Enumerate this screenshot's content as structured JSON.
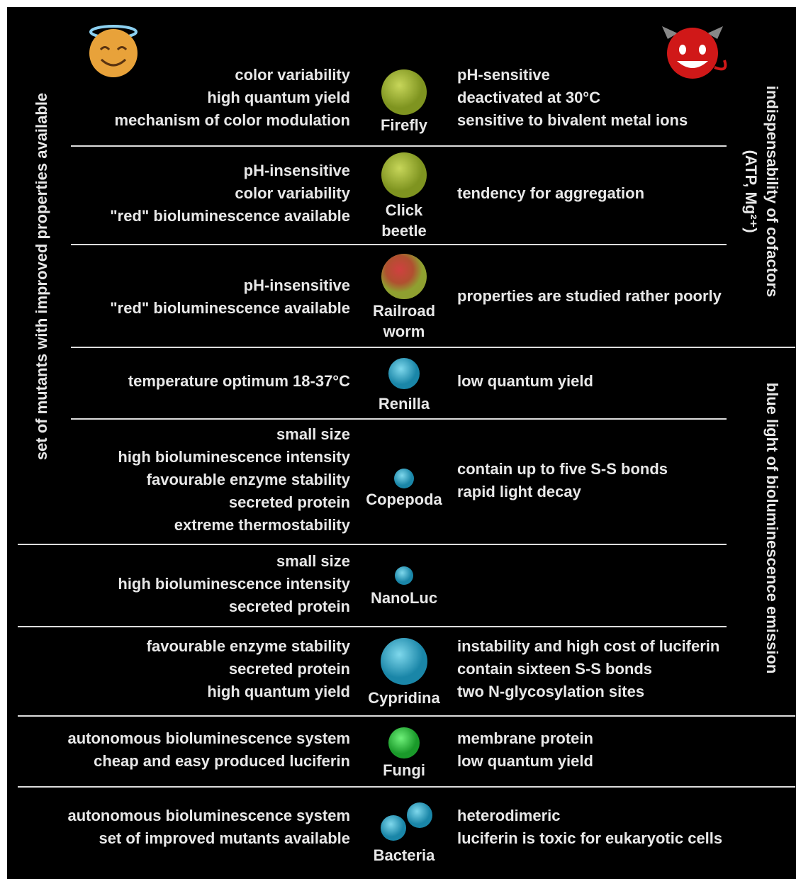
{
  "side_labels": {
    "left": "set of mutants with improved properties available",
    "right_top": "indispensability of cofactors",
    "right_top_sub": "(ATP, Mg²⁺)",
    "right_bottom": "blue light of bioluminescence emission"
  },
  "rows": [
    {
      "name": [
        "Firefly"
      ],
      "pros": [
        "color variability",
        "high quantum yield",
        "mechanism of color modulation"
      ],
      "cons": [
        "pH-sensitive",
        "deactivated at 30°C",
        "sensitive to bivalent metal ions"
      ]
    },
    {
      "name": [
        "Click",
        "beetle"
      ],
      "pros": [
        "pH-insensitive",
        "color variability",
        "\"red\" bioluminescence available"
      ],
      "cons": [
        "tendency for aggregation"
      ]
    },
    {
      "name": [
        "Railroad",
        "worm"
      ],
      "pros": [
        "pH-insensitive",
        "\"red\" bioluminescence available"
      ],
      "cons": [
        "properties are studied rather poorly"
      ]
    },
    {
      "name": [
        "Renilla"
      ],
      "pros": [
        "temperature optimum 18-37°C"
      ],
      "cons": [
        "low quantum yield"
      ]
    },
    {
      "name": [
        "Copepoda"
      ],
      "pros": [
        "small size",
        "high bioluminescence intensity",
        "favourable enzyme stability",
        "secreted protein",
        "extreme thermostability"
      ],
      "cons": [
        "contain up to five S-S bonds",
        "rapid light decay"
      ]
    },
    {
      "name": [
        "NanoLuc"
      ],
      "pros": [
        "small size",
        "high bioluminescence intensity",
        "secreted protein"
      ],
      "cons": []
    },
    {
      "name": [
        "Cypridina"
      ],
      "pros": [
        "favourable enzyme stability",
        "secreted protein",
        "high quantum yield"
      ],
      "cons": [
        "instability and high cost of luciferin",
        "contain sixteen S-S bonds",
        "two N-glycosylation sites"
      ]
    },
    {
      "name": [
        "Fungi"
      ],
      "pros": [
        "autonomous bioluminescence system",
        "cheap and easy produced luciferin"
      ],
      "cons": [
        "membrane protein",
        "low quantum yield"
      ]
    },
    {
      "name": [
        "Bacteria"
      ],
      "pros": [
        "autonomous bioluminescence system",
        "set of improved mutants available"
      ],
      "cons": [
        "heterodimeric",
        "luciferin is toxic for eukaryotic cells"
      ]
    }
  ]
}
